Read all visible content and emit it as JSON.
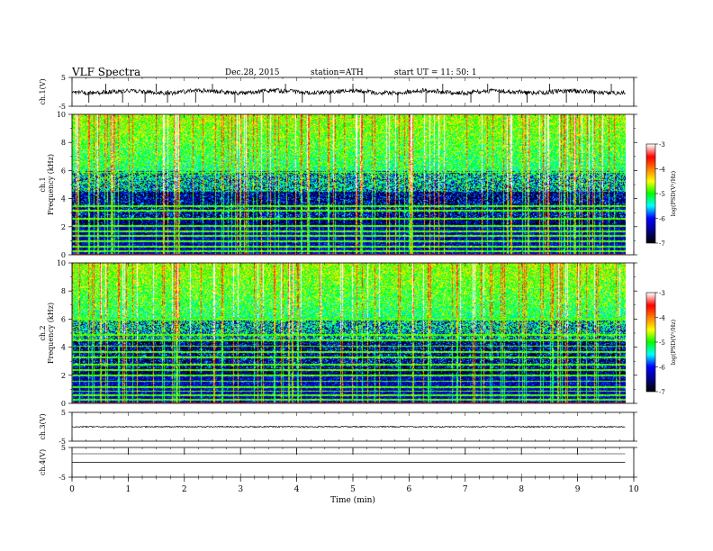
{
  "header": {
    "title": "VLF  Spectra",
    "date": "Dec.28, 2015",
    "station": "station=ATH",
    "start": "start  UT  =   11: 50: 1"
  },
  "chart_data": [
    {
      "type": "line",
      "ylabel": "ch.1(V)",
      "yticks": [
        "5",
        "-5"
      ],
      "ylim": [
        -5,
        5
      ],
      "xlim": [
        0,
        10
      ],
      "baseline": 0,
      "spikes_down": [
        0.3,
        0.9,
        1.3,
        1.7,
        2.2,
        2.9,
        3.4,
        4.1,
        4.6,
        5.2,
        5.8,
        6.3,
        7.1,
        7.6,
        8.1,
        8.8,
        9.3
      ],
      "spikes_up": [
        0.6,
        1.5,
        2.5,
        3.8,
        5.0,
        6.6,
        7.4,
        8.5,
        9.6
      ]
    },
    {
      "type": "heatmap",
      "ylabel": "ch.1",
      "ylabel2": "Frequency  (kHz)",
      "yticks": [
        "0",
        "2",
        "4",
        "6",
        "8",
        "10"
      ],
      "ylim": [
        0,
        10
      ],
      "xlim": [
        0,
        10
      ],
      "colorbar": {
        "label": "log(PSD(V²/Hz)",
        "ticks": [
          "-3",
          "-4",
          "-5",
          "-6",
          "-7"
        ],
        "range": [
          -7,
          -3
        ]
      },
      "bands_khz": [
        0.3,
        0.6,
        1.0,
        1.4,
        1.7,
        2.1,
        2.6,
        3.2,
        3.5,
        5.9
      ]
    },
    {
      "type": "heatmap",
      "ylabel": "ch.2",
      "ylabel2": "Frequency  (kHz)",
      "yticks": [
        "0",
        "2",
        "4",
        "6",
        "8",
        "10"
      ],
      "ylim": [
        0,
        10
      ],
      "xlim": [
        0,
        10
      ],
      "colorbar": {
        "label": "log(PSD(V²/Hz)",
        "ticks": [
          "-3",
          "-4",
          "-5",
          "-6",
          "-7"
        ],
        "range": [
          -7,
          -3
        ]
      },
      "bands_khz": [
        0.3,
        0.6,
        0.9,
        1.2,
        1.6,
        2.0,
        2.4,
        2.8,
        3.3,
        3.7,
        4.1,
        4.5,
        4.9,
        6.0
      ]
    },
    {
      "type": "line",
      "ylabel": "ch.3(V)",
      "yticks": [
        "5",
        "-5"
      ],
      "ylim": [
        -5,
        5
      ],
      "xlim": [
        0,
        10
      ],
      "baseline": 0
    },
    {
      "type": "line",
      "ylabel": "ch.4(V)",
      "yticks": [
        "5",
        "-5"
      ],
      "ylim": [
        -5,
        5
      ],
      "xlim": [
        0,
        10
      ],
      "baseline": 0,
      "pulses": [
        1,
        2,
        3,
        4,
        5,
        6,
        7,
        8,
        9
      ]
    }
  ],
  "x_axis": {
    "xlabel": "Time  (min)",
    "ticks": [
      "0",
      "1",
      "2",
      "3",
      "4",
      "5",
      "6",
      "7",
      "8",
      "9",
      "10"
    ],
    "range": [
      0,
      10
    ],
    "data_end": 9.85
  },
  "colors": {
    "colormap": [
      "#000000",
      "#00008b",
      "#0000ff",
      "#00ffff",
      "#00ff00",
      "#ffff00",
      "#ff8000",
      "#ff0000",
      "#ffffff"
    ],
    "trace": "#000000"
  }
}
